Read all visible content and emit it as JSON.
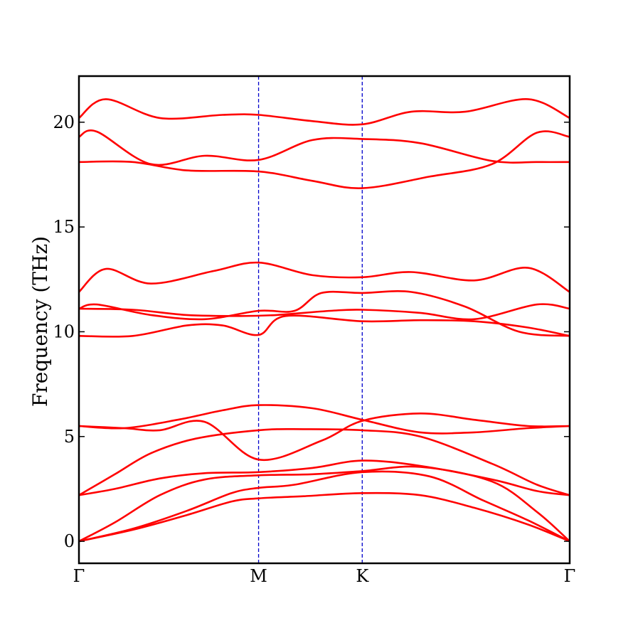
{
  "chart_data": {
    "type": "line",
    "title": "",
    "xlabel": "",
    "ylabel": "Frequency (THz)",
    "ylim": [
      -1.05,
      22.2
    ],
    "x_ticks": [
      {
        "label": "Γ",
        "pos": 0.0
      },
      {
        "label": "M",
        "pos": 1.0
      },
      {
        "label": "K",
        "pos": 1.577
      },
      {
        "label": "Γ",
        "pos": 2.732
      }
    ],
    "y_ticks": [
      0,
      5,
      10,
      15,
      20
    ],
    "vlines_at": [
      1.0,
      1.577
    ],
    "grid": false,
    "legend": "none",
    "colors": {
      "bands": "#ff0000",
      "vlines": "#0000cc",
      "axes": "#000000"
    },
    "series": [
      {
        "values": [
          [
            0,
            0
          ],
          [
            0.3,
            0.55
          ],
          [
            0.6,
            1.25
          ],
          [
            0.85,
            1.9
          ],
          [
            1.0,
            2.05
          ],
          [
            1.25,
            2.15
          ],
          [
            1.577,
            2.3
          ],
          [
            1.9,
            2.2
          ],
          [
            2.2,
            1.6
          ],
          [
            2.5,
            0.8
          ],
          [
            2.732,
            0
          ]
        ]
      },
      {
        "values": [
          [
            0,
            0
          ],
          [
            0.3,
            0.6
          ],
          [
            0.6,
            1.45
          ],
          [
            0.85,
            2.3
          ],
          [
            1.0,
            2.55
          ],
          [
            1.2,
            2.7
          ],
          [
            1.577,
            3.3
          ],
          [
            1.95,
            3.1
          ],
          [
            2.25,
            1.95
          ],
          [
            2.5,
            1.0
          ],
          [
            2.732,
            0
          ]
        ]
      },
      {
        "values": [
          [
            0,
            0
          ],
          [
            0.2,
            0.9
          ],
          [
            0.45,
            2.2
          ],
          [
            0.7,
            2.95
          ],
          [
            1.0,
            3.15
          ],
          [
            1.3,
            3.2
          ],
          [
            1.577,
            3.35
          ],
          [
            1.9,
            3.55
          ],
          [
            2.3,
            2.85
          ],
          [
            2.55,
            1.4
          ],
          [
            2.732,
            0
          ]
        ]
      },
      {
        "values": [
          [
            0,
            2.2
          ],
          [
            0.2,
            2.5
          ],
          [
            0.45,
            3.0
          ],
          [
            0.7,
            3.25
          ],
          [
            1.0,
            3.3
          ],
          [
            1.3,
            3.5
          ],
          [
            1.577,
            3.85
          ],
          [
            1.9,
            3.6
          ],
          [
            2.3,
            2.95
          ],
          [
            2.55,
            2.4
          ],
          [
            2.732,
            2.2
          ]
        ]
      },
      {
        "values": [
          [
            0,
            2.2
          ],
          [
            0.2,
            3.2
          ],
          [
            0.4,
            4.2
          ],
          [
            0.65,
            4.9
          ],
          [
            1.0,
            5.3
          ],
          [
            1.25,
            5.35
          ],
          [
            1.577,
            5.3
          ],
          [
            1.9,
            5.0
          ],
          [
            2.3,
            3.7
          ],
          [
            2.55,
            2.7
          ],
          [
            2.732,
            2.2
          ]
        ]
      },
      {
        "values": [
          [
            0,
            5.5
          ],
          [
            0.25,
            5.4
          ],
          [
            0.55,
            5.8
          ],
          [
            0.8,
            6.25
          ],
          [
            1.0,
            6.5
          ],
          [
            1.3,
            6.35
          ],
          [
            1.577,
            5.8
          ],
          [
            1.9,
            5.2
          ],
          [
            2.2,
            5.2
          ],
          [
            2.5,
            5.4
          ],
          [
            2.732,
            5.5
          ]
        ]
      },
      {
        "values": [
          [
            0,
            5.5
          ],
          [
            0.25,
            5.4
          ],
          [
            0.45,
            5.3
          ],
          [
            0.7,
            5.7
          ],
          [
            1.0,
            3.9
          ],
          [
            1.35,
            4.8
          ],
          [
            1.577,
            5.75
          ],
          [
            1.9,
            6.1
          ],
          [
            2.2,
            5.8
          ],
          [
            2.5,
            5.5
          ],
          [
            2.732,
            5.5
          ]
        ]
      },
      {
        "values": [
          [
            0,
            9.8
          ],
          [
            0.3,
            9.8
          ],
          [
            0.6,
            10.3
          ],
          [
            0.8,
            10.3
          ],
          [
            1.0,
            9.85
          ],
          [
            1.15,
            10.75
          ],
          [
            1.577,
            10.5
          ],
          [
            1.9,
            10.55
          ],
          [
            2.2,
            10.5
          ],
          [
            2.5,
            10.2
          ],
          [
            2.732,
            9.8
          ]
        ]
      },
      {
        "values": [
          [
            0,
            11.1
          ],
          [
            0.1,
            11.3
          ],
          [
            0.4,
            10.8
          ],
          [
            0.7,
            10.6
          ],
          [
            1.0,
            11.0
          ],
          [
            1.2,
            11.0
          ],
          [
            1.35,
            11.85
          ],
          [
            1.577,
            11.85
          ],
          [
            1.85,
            11.9
          ],
          [
            2.15,
            11.2
          ],
          [
            2.45,
            10.0
          ],
          [
            2.732,
            9.8
          ]
        ]
      },
      {
        "values": [
          [
            0,
            11.9
          ],
          [
            0.15,
            13.0
          ],
          [
            0.4,
            12.3
          ],
          [
            0.75,
            12.9
          ],
          [
            1.0,
            13.3
          ],
          [
            1.3,
            12.7
          ],
          [
            1.577,
            12.6
          ],
          [
            1.85,
            12.85
          ],
          [
            2.2,
            12.45
          ],
          [
            2.5,
            13.05
          ],
          [
            2.732,
            11.9
          ]
        ]
      },
      {
        "values": [
          [
            0,
            11.1
          ],
          [
            0.3,
            11.05
          ],
          [
            0.6,
            10.8
          ],
          [
            0.9,
            10.75
          ],
          [
            1.1,
            10.8
          ],
          [
            1.4,
            11.0
          ],
          [
            1.577,
            11.05
          ],
          [
            1.9,
            10.9
          ],
          [
            2.2,
            10.6
          ],
          [
            2.55,
            11.3
          ],
          [
            2.732,
            11.1
          ]
        ]
      },
      {
        "values": [
          [
            0,
            18.1
          ],
          [
            0.3,
            18.1
          ],
          [
            0.6,
            17.7
          ],
          [
            1.0,
            17.65
          ],
          [
            1.3,
            17.2
          ],
          [
            1.577,
            16.85
          ],
          [
            1.95,
            17.4
          ],
          [
            2.3,
            18.0
          ],
          [
            2.55,
            19.5
          ],
          [
            2.732,
            19.3
          ]
        ]
      },
      {
        "values": [
          [
            0,
            19.3
          ],
          [
            0.1,
            19.55
          ],
          [
            0.4,
            18.0
          ],
          [
            0.7,
            18.4
          ],
          [
            1.0,
            18.2
          ],
          [
            1.3,
            19.15
          ],
          [
            1.577,
            19.2
          ],
          [
            1.9,
            19.0
          ],
          [
            2.3,
            18.15
          ],
          [
            2.55,
            18.1
          ],
          [
            2.732,
            18.1
          ]
        ]
      },
      {
        "values": [
          [
            0,
            20.2
          ],
          [
            0.15,
            21.1
          ],
          [
            0.45,
            20.2
          ],
          [
            0.8,
            20.35
          ],
          [
            1.0,
            20.35
          ],
          [
            1.3,
            20.05
          ],
          [
            1.577,
            19.9
          ],
          [
            1.85,
            20.5
          ],
          [
            2.15,
            20.5
          ],
          [
            2.5,
            21.1
          ],
          [
            2.732,
            20.2
          ]
        ]
      }
    ]
  }
}
